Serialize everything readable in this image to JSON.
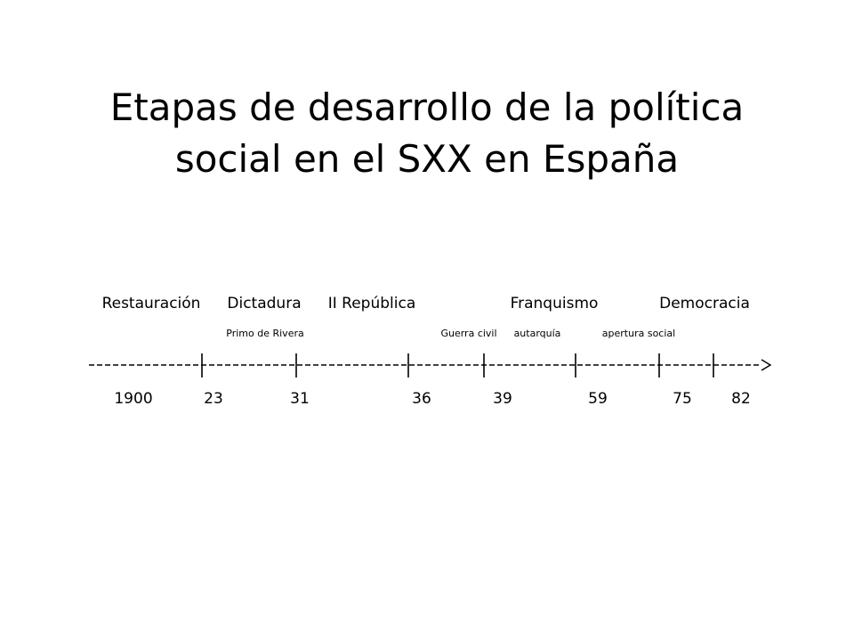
{
  "title": {
    "line1": "Etapas de desarrollo de la política",
    "line2": "social en el SXX en España"
  },
  "periods": [
    "Restauración",
    "Dictadura",
    "II República",
    "Franquismo",
    "Democracia"
  ],
  "sub_labels": [
    "Primo de  Rivera",
    "Guerra civil",
    "autarquía",
    "apertura social"
  ],
  "timeline": {
    "years": [
      "1900",
      "23",
      "31",
      "36",
      "39",
      "59",
      "75",
      "82"
    ]
  },
  "colors": {
    "background": "#ffffff",
    "text": "#000000"
  }
}
